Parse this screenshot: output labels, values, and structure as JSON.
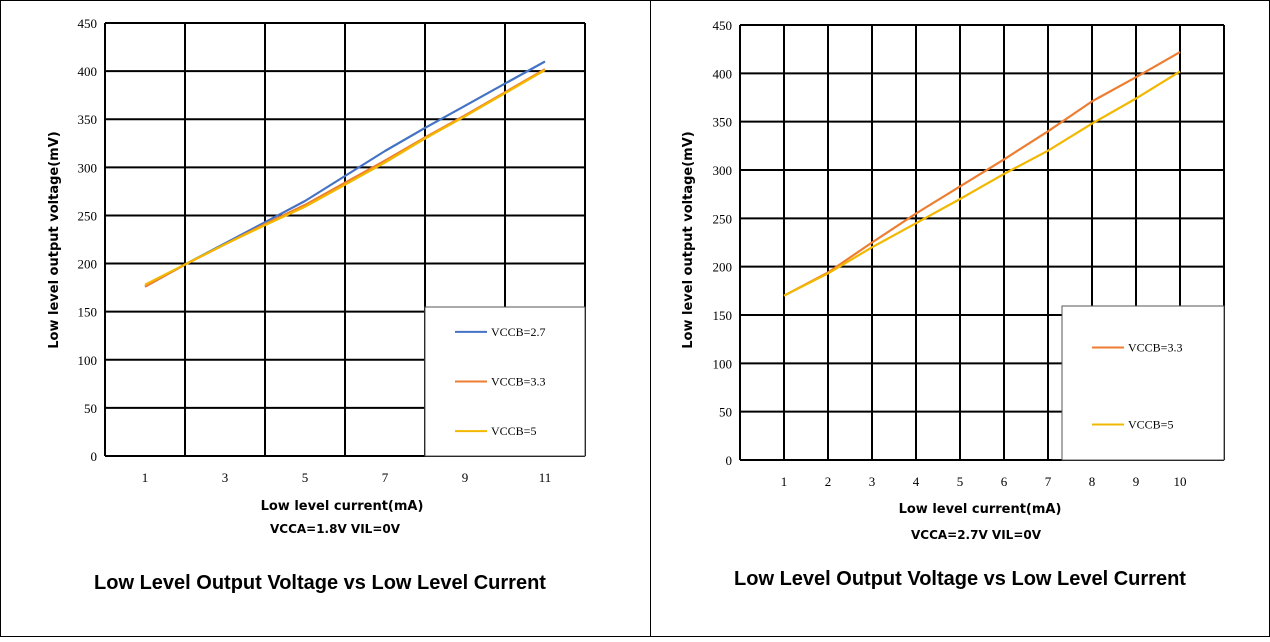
{
  "chart_data": [
    {
      "type": "line",
      "xlabel": "Low level current(mA)",
      "ylabel": "Low level output voltage(mV)",
      "subtitle": "VCCA=1.8V VIL=0V",
      "caption": "Low Level Output Voltage vs Low Level Current",
      "x_ticks": [
        1,
        3,
        5,
        7,
        9,
        11
      ],
      "y_ticks": [
        0,
        50,
        100,
        150,
        200,
        250,
        300,
        350,
        400,
        450
      ],
      "xlim": [
        0,
        12
      ],
      "ylim": [
        0,
        450
      ],
      "grid": true,
      "legend_position": "bottom-right",
      "x": [
        1,
        2,
        3,
        4,
        5,
        6,
        7,
        8,
        9,
        10,
        11
      ],
      "series": [
        {
          "name": "VCCB=2.7",
          "color": "#4472C4",
          "values": [
            176,
            199,
            221,
            243,
            265,
            291,
            317,
            341,
            364,
            387,
            410
          ]
        },
        {
          "name": "VCCB=3.3",
          "color": "#ED7D31",
          "values": [
            176,
            199,
            220,
            241,
            261,
            284,
            307,
            331,
            354,
            378,
            402
          ]
        },
        {
          "name": "VCCB=5",
          "color": "#F2B800",
          "values": [
            178,
            199,
            220,
            240,
            259,
            282,
            305,
            330,
            353,
            377,
            401
          ]
        }
      ]
    },
    {
      "type": "line",
      "xlabel": "Low level current(mA)",
      "ylabel": "Low level output voltage(mV)",
      "subtitle": "VCCA=2.7V VIL=0V",
      "caption": "Low Level Output Voltage vs Low Level Current",
      "x_ticks": [
        1,
        2,
        3,
        4,
        5,
        6,
        7,
        8,
        9,
        10
      ],
      "y_ticks": [
        0,
        50,
        100,
        150,
        200,
        250,
        300,
        350,
        400,
        450
      ],
      "xlim": [
        0,
        11
      ],
      "ylim": [
        0,
        450
      ],
      "grid": true,
      "legend_position": "bottom-right",
      "x": [
        1,
        2,
        3,
        4,
        5,
        6,
        7,
        8,
        9,
        10
      ],
      "series": [
        {
          "name": "VCCB=3.3",
          "color": "#ED7D31",
          "values": [
            170,
            194,
            225,
            255,
            283,
            311,
            340,
            371,
            396,
            422
          ]
        },
        {
          "name": "VCCB=5",
          "color": "#F2B800",
          "values": [
            170,
            193,
            220,
            245,
            270,
            296,
            320,
            348,
            374,
            402
          ]
        }
      ]
    }
  ]
}
